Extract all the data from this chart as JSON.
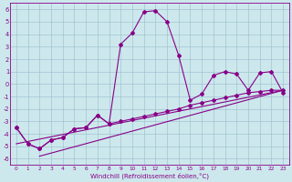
{
  "xlabel": "Windchill (Refroidissement éolien,°C)",
  "xlim": [
    -0.5,
    23.5
  ],
  "ylim": [
    -6.5,
    6.5
  ],
  "ytick_values": [
    -6,
    -5,
    -4,
    -3,
    -2,
    -1,
    0,
    1,
    2,
    3,
    4,
    5,
    6
  ],
  "bg_color": "#cce8ec",
  "line_color": "#880088",
  "grid_color": "#99bbcc",
  "line1_x": [
    0,
    1,
    2,
    3,
    4,
    5,
    6,
    7,
    8,
    9,
    10,
    11,
    12,
    13,
    14,
    15,
    16,
    17,
    18,
    19,
    20,
    21,
    22,
    23
  ],
  "line1_y": [
    -3.5,
    -4.8,
    -5.2,
    -4.5,
    -4.3,
    -3.6,
    -3.5,
    -2.5,
    -3.2,
    3.2,
    4.1,
    5.8,
    5.9,
    5.0,
    2.3,
    -1.3,
    -0.8,
    0.7,
    1.0,
    0.8,
    -0.5,
    0.9,
    1.0,
    -0.7
  ],
  "line2_x": [
    0,
    1,
    2,
    3,
    4,
    5,
    6,
    7,
    8,
    9,
    10,
    11,
    12,
    13,
    14,
    15,
    16,
    17,
    18,
    19,
    20,
    21,
    22,
    23
  ],
  "line2_y": [
    -3.5,
    -4.8,
    -5.2,
    -4.5,
    -4.3,
    -3.6,
    -3.5,
    -2.5,
    -3.2,
    -3.0,
    -2.8,
    -2.6,
    -2.4,
    -2.2,
    -2.0,
    -1.7,
    -1.5,
    -1.3,
    -1.1,
    -0.9,
    -0.7,
    -0.6,
    -0.5,
    -0.5
  ],
  "line3_x": [
    0,
    23
  ],
  "line3_y": [
    -4.8,
    -0.5
  ],
  "line4_x": [
    2,
    23
  ],
  "line4_y": [
    -5.8,
    -0.5
  ]
}
